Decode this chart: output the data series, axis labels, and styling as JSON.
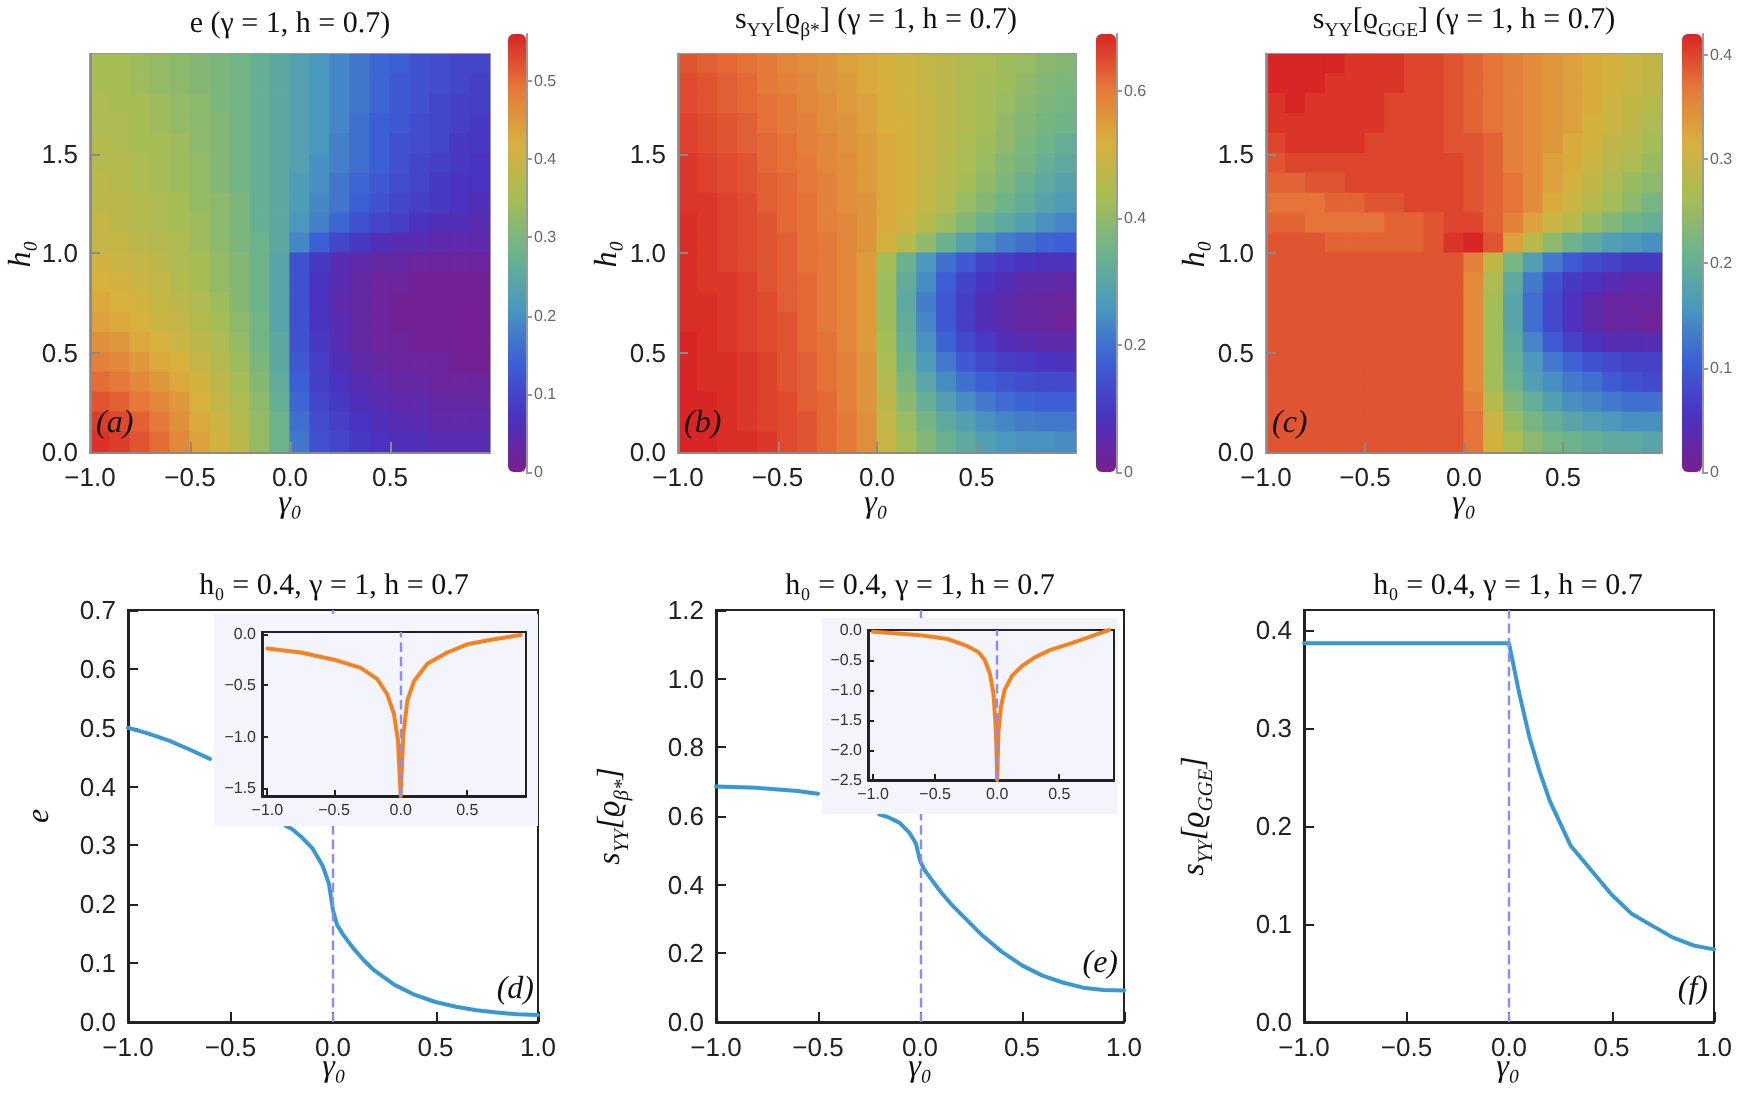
{
  "chart_data": [
    {
      "type": "heatmap",
      "title": "e  (γ = 1, h = 0.7)",
      "xlabel": "γ₀",
      "ylabel": "h₀",
      "x": [
        -0.95,
        -0.85,
        -0.75,
        -0.65,
        -0.55,
        -0.45,
        -0.35,
        -0.25,
        -0.15,
        -0.05,
        0.05,
        0.15,
        0.25,
        0.35,
        0.45,
        0.55,
        0.65,
        0.75,
        0.85,
        0.95
      ],
      "cells": [
        [
          0.35,
          0.35,
          0.34,
          0.33,
          0.32,
          0.31,
          0.3,
          0.29,
          0.27,
          0.25,
          0.23,
          0.21,
          0.19,
          0.17,
          0.15,
          0.14,
          0.12,
          0.11,
          0.1,
          0.1
        ],
        [
          0.35,
          0.35,
          0.34,
          0.33,
          0.32,
          0.31,
          0.3,
          0.29,
          0.27,
          0.25,
          0.23,
          0.21,
          0.19,
          0.17,
          0.15,
          0.13,
          0.12,
          0.11,
          0.1,
          0.09
        ],
        [
          0.36,
          0.35,
          0.35,
          0.34,
          0.33,
          0.32,
          0.3,
          0.29,
          0.27,
          0.25,
          0.23,
          0.21,
          0.19,
          0.17,
          0.15,
          0.13,
          0.12,
          0.1,
          0.09,
          0.09
        ],
        [
          0.36,
          0.36,
          0.35,
          0.34,
          0.33,
          0.32,
          0.31,
          0.29,
          0.27,
          0.25,
          0.23,
          0.21,
          0.19,
          0.16,
          0.14,
          0.13,
          0.11,
          0.1,
          0.09,
          0.08
        ],
        [
          0.37,
          0.36,
          0.35,
          0.35,
          0.34,
          0.32,
          0.31,
          0.29,
          0.27,
          0.25,
          0.23,
          0.21,
          0.18,
          0.16,
          0.14,
          0.12,
          0.11,
          0.1,
          0.08,
          0.08
        ],
        [
          0.37,
          0.37,
          0.36,
          0.35,
          0.34,
          0.33,
          0.31,
          0.29,
          0.27,
          0.25,
          0.23,
          0.2,
          0.18,
          0.16,
          0.14,
          0.12,
          0.1,
          0.09,
          0.08,
          0.07
        ],
        [
          0.38,
          0.37,
          0.36,
          0.35,
          0.34,
          0.33,
          0.31,
          0.29,
          0.27,
          0.25,
          0.22,
          0.2,
          0.17,
          0.15,
          0.13,
          0.11,
          0.1,
          0.08,
          0.07,
          0.07
        ],
        [
          0.38,
          0.38,
          0.37,
          0.36,
          0.35,
          0.33,
          0.32,
          0.3,
          0.27,
          0.25,
          0.22,
          0.19,
          0.17,
          0.14,
          0.12,
          0.1,
          0.09,
          0.08,
          0.07,
          0.06
        ],
        [
          0.39,
          0.38,
          0.37,
          0.36,
          0.35,
          0.34,
          0.32,
          0.3,
          0.27,
          0.25,
          0.21,
          0.18,
          0.15,
          0.12,
          0.1,
          0.09,
          0.07,
          0.06,
          0.06,
          0.05
        ],
        [
          0.39,
          0.39,
          0.38,
          0.37,
          0.36,
          0.34,
          0.32,
          0.3,
          0.28,
          0.25,
          0.19,
          0.14,
          0.1,
          0.08,
          0.06,
          0.05,
          0.05,
          0.04,
          0.04,
          0.04
        ],
        [
          0.41,
          0.4,
          0.39,
          0.38,
          0.36,
          0.35,
          0.33,
          0.31,
          0.28,
          0.24,
          0.12,
          0.08,
          0.05,
          0.04,
          0.03,
          0.03,
          0.02,
          0.02,
          0.02,
          0.02
        ],
        [
          0.42,
          0.41,
          0.4,
          0.39,
          0.37,
          0.35,
          0.33,
          0.31,
          0.28,
          0.24,
          0.12,
          0.07,
          0.05,
          0.03,
          0.02,
          0.02,
          0.01,
          0.01,
          0.01,
          0.01
        ],
        [
          0.43,
          0.42,
          0.41,
          0.39,
          0.38,
          0.36,
          0.34,
          0.31,
          0.28,
          0.24,
          0.12,
          0.07,
          0.04,
          0.03,
          0.02,
          0.01,
          0.01,
          0.01,
          0.01,
          0.01
        ],
        [
          0.44,
          0.43,
          0.42,
          0.4,
          0.39,
          0.37,
          0.35,
          0.32,
          0.29,
          0.24,
          0.12,
          0.07,
          0.05,
          0.03,
          0.02,
          0.01,
          0.01,
          0.01,
          0.01,
          0.01
        ],
        [
          0.46,
          0.45,
          0.43,
          0.42,
          0.4,
          0.38,
          0.36,
          0.33,
          0.29,
          0.25,
          0.12,
          0.08,
          0.05,
          0.03,
          0.02,
          0.02,
          0.01,
          0.01,
          0.01,
          0.01
        ],
        [
          0.48,
          0.47,
          0.45,
          0.43,
          0.42,
          0.39,
          0.37,
          0.34,
          0.3,
          0.25,
          0.13,
          0.09,
          0.06,
          0.04,
          0.03,
          0.02,
          0.02,
          0.02,
          0.01,
          0.01
        ],
        [
          0.5,
          0.49,
          0.47,
          0.45,
          0.43,
          0.41,
          0.38,
          0.35,
          0.31,
          0.26,
          0.14,
          0.09,
          0.07,
          0.05,
          0.04,
          0.03,
          0.03,
          0.02,
          0.02,
          0.02
        ],
        [
          0.52,
          0.51,
          0.49,
          0.47,
          0.45,
          0.42,
          0.39,
          0.36,
          0.32,
          0.27,
          0.15,
          0.1,
          0.08,
          0.06,
          0.05,
          0.04,
          0.04,
          0.03,
          0.03,
          0.03
        ],
        [
          0.54,
          0.53,
          0.51,
          0.49,
          0.46,
          0.43,
          0.4,
          0.37,
          0.33,
          0.28,
          0.16,
          0.11,
          0.09,
          0.07,
          0.06,
          0.05,
          0.05,
          0.04,
          0.04,
          0.04
        ],
        [
          0.55,
          0.54,
          0.52,
          0.5,
          0.47,
          0.44,
          0.41,
          0.38,
          0.33,
          0.28,
          0.17,
          0.12,
          0.1,
          0.08,
          0.07,
          0.06,
          0.06,
          0.05,
          0.05,
          0.05
        ]
      ],
      "xlim": [
        -1,
        1
      ],
      "ylim": [
        0,
        2
      ],
      "xticks": [
        {
          "value": -1,
          "label": "−1.0"
        },
        {
          "value": -0.5,
          "label": "−0.5"
        },
        {
          "value": 0,
          "label": "0.0"
        },
        {
          "value": 0.5,
          "label": "0.5"
        }
      ],
      "yticks": [
        {
          "value": 0,
          "label": "0.0"
        },
        0.5,
        {
          "value": 1,
          "label": "1.0"
        },
        1.5
      ],
      "clim": [
        0,
        0.56
      ],
      "cticks": [
        0,
        0.1,
        0.2,
        0.3,
        0.4,
        0.5
      ],
      "annotations": [
        "(a)"
      ]
    },
    {
      "type": "heatmap",
      "title": "s$_{YY}$[ϱ$_{β*}$]  (γ = 1, h = 0.7)",
      "xlabel": "γ₀",
      "ylabel": "h₀",
      "x": [
        -0.95,
        -0.85,
        -0.75,
        -0.65,
        -0.55,
        -0.45,
        -0.35,
        -0.25,
        -0.15,
        -0.05,
        0.05,
        0.15,
        0.25,
        0.35,
        0.45,
        0.55,
        0.65,
        0.75,
        0.85,
        0.95
      ],
      "cells": [
        [
          0.64,
          0.63,
          0.62,
          0.61,
          0.6,
          0.58,
          0.57,
          0.56,
          0.54,
          0.53,
          0.51,
          0.5,
          0.48,
          0.47,
          0.45,
          0.44,
          0.42,
          0.41,
          0.39,
          0.38
        ],
        [
          0.65,
          0.64,
          0.63,
          0.62,
          0.6,
          0.59,
          0.58,
          0.56,
          0.55,
          0.53,
          0.52,
          0.5,
          0.48,
          0.47,
          0.45,
          0.43,
          0.42,
          0.4,
          0.38,
          0.37
        ],
        [
          0.65,
          0.64,
          0.63,
          0.62,
          0.61,
          0.6,
          0.58,
          0.57,
          0.55,
          0.54,
          0.52,
          0.5,
          0.49,
          0.47,
          0.45,
          0.43,
          0.41,
          0.39,
          0.37,
          0.36
        ],
        [
          0.66,
          0.65,
          0.64,
          0.63,
          0.61,
          0.6,
          0.59,
          0.57,
          0.56,
          0.54,
          0.52,
          0.51,
          0.49,
          0.47,
          0.45,
          0.43,
          0.4,
          0.38,
          0.36,
          0.35
        ],
        [
          0.66,
          0.65,
          0.64,
          0.63,
          0.62,
          0.61,
          0.59,
          0.58,
          0.56,
          0.55,
          0.53,
          0.51,
          0.49,
          0.47,
          0.44,
          0.42,
          0.4,
          0.37,
          0.35,
          0.33
        ],
        [
          0.67,
          0.66,
          0.65,
          0.64,
          0.62,
          0.61,
          0.6,
          0.58,
          0.57,
          0.55,
          0.53,
          0.51,
          0.49,
          0.46,
          0.44,
          0.41,
          0.38,
          0.36,
          0.33,
          0.31
        ],
        [
          0.67,
          0.66,
          0.65,
          0.64,
          0.63,
          0.62,
          0.6,
          0.59,
          0.57,
          0.55,
          0.53,
          0.51,
          0.48,
          0.46,
          0.43,
          0.4,
          0.37,
          0.34,
          0.31,
          0.29
        ],
        [
          0.67,
          0.67,
          0.66,
          0.65,
          0.63,
          0.62,
          0.61,
          0.59,
          0.57,
          0.56,
          0.53,
          0.51,
          0.48,
          0.45,
          0.41,
          0.38,
          0.35,
          0.32,
          0.29,
          0.27
        ],
        [
          0.68,
          0.67,
          0.66,
          0.65,
          0.64,
          0.62,
          0.61,
          0.59,
          0.58,
          0.56,
          0.53,
          0.5,
          0.46,
          0.42,
          0.38,
          0.34,
          0.31,
          0.28,
          0.25,
          0.23
        ],
        [
          0.68,
          0.67,
          0.66,
          0.65,
          0.64,
          0.63,
          0.61,
          0.6,
          0.58,
          0.56,
          0.51,
          0.46,
          0.4,
          0.34,
          0.29,
          0.25,
          0.22,
          0.2,
          0.18,
          0.17
        ],
        [
          0.68,
          0.67,
          0.66,
          0.65,
          0.64,
          0.63,
          0.61,
          0.6,
          0.58,
          0.55,
          0.43,
          0.34,
          0.26,
          0.2,
          0.16,
          0.12,
          0.1,
          0.09,
          0.08,
          0.08
        ],
        [
          0.68,
          0.67,
          0.67,
          0.66,
          0.64,
          0.63,
          0.62,
          0.6,
          0.58,
          0.55,
          0.42,
          0.32,
          0.24,
          0.17,
          0.12,
          0.09,
          0.07,
          0.05,
          0.05,
          0.04
        ],
        [
          0.68,
          0.68,
          0.67,
          0.66,
          0.65,
          0.63,
          0.62,
          0.6,
          0.58,
          0.55,
          0.42,
          0.31,
          0.22,
          0.16,
          0.11,
          0.07,
          0.05,
          0.04,
          0.03,
          0.03
        ],
        [
          0.68,
          0.68,
          0.67,
          0.66,
          0.65,
          0.64,
          0.62,
          0.6,
          0.58,
          0.55,
          0.42,
          0.32,
          0.23,
          0.16,
          0.11,
          0.07,
          0.05,
          0.04,
          0.03,
          0.02
        ],
        [
          0.69,
          0.68,
          0.67,
          0.66,
          0.65,
          0.64,
          0.62,
          0.61,
          0.58,
          0.55,
          0.43,
          0.33,
          0.25,
          0.18,
          0.13,
          0.1,
          0.07,
          0.06,
          0.05,
          0.05
        ],
        [
          0.69,
          0.68,
          0.68,
          0.67,
          0.66,
          0.64,
          0.63,
          0.61,
          0.59,
          0.56,
          0.44,
          0.35,
          0.27,
          0.21,
          0.16,
          0.13,
          0.11,
          0.1,
          0.09,
          0.08
        ],
        [
          0.69,
          0.68,
          0.68,
          0.67,
          0.66,
          0.64,
          0.63,
          0.61,
          0.59,
          0.56,
          0.45,
          0.37,
          0.3,
          0.24,
          0.2,
          0.17,
          0.15,
          0.14,
          0.13,
          0.13
        ],
        [
          0.69,
          0.69,
          0.68,
          0.67,
          0.66,
          0.65,
          0.63,
          0.62,
          0.59,
          0.56,
          0.47,
          0.39,
          0.33,
          0.28,
          0.24,
          0.21,
          0.19,
          0.18,
          0.17,
          0.17
        ],
        [
          0.69,
          0.69,
          0.68,
          0.67,
          0.66,
          0.65,
          0.64,
          0.62,
          0.6,
          0.57,
          0.48,
          0.41,
          0.36,
          0.31,
          0.28,
          0.25,
          0.23,
          0.22,
          0.21,
          0.21
        ],
        [
          0.69,
          0.69,
          0.68,
          0.68,
          0.67,
          0.65,
          0.64,
          0.62,
          0.6,
          0.57,
          0.49,
          0.43,
          0.38,
          0.34,
          0.31,
          0.28,
          0.26,
          0.25,
          0.25,
          0.24
        ]
      ],
      "xlim": [
        -1,
        1
      ],
      "ylim": [
        0,
        2
      ],
      "xticks": [
        {
          "value": -1,
          "label": "−1.0"
        },
        {
          "value": -0.5,
          "label": "−0.5"
        },
        {
          "value": 0,
          "label": "0.0"
        },
        {
          "value": 0.5,
          "label": "0.5"
        }
      ],
      "yticks": [
        {
          "value": 0,
          "label": "0.0"
        },
        0.5,
        {
          "value": 1,
          "label": "1.0"
        },
        1.5
      ],
      "clim": [
        0,
        0.69
      ],
      "cticks": [
        0,
        0.2,
        0.4,
        0.6
      ],
      "annotations": [
        "(b)"
      ]
    },
    {
      "type": "heatmap",
      "title": "s$_{YY}$[ϱ$_{GGE}$]  (γ = 1, h = 0.7)",
      "xlabel": "γ₀",
      "ylabel": "h₀",
      "x": [
        -0.95,
        -0.85,
        -0.75,
        -0.65,
        -0.55,
        -0.45,
        -0.35,
        -0.25,
        -0.15,
        -0.05,
        0.05,
        0.15,
        0.25,
        0.35,
        0.45,
        0.55,
        0.65,
        0.75,
        0.85,
        0.95
      ],
      "cells": [
        [
          0.42,
          0.42,
          0.42,
          0.42,
          0.41,
          0.41,
          0.41,
          0.4,
          0.4,
          0.39,
          0.38,
          0.37,
          0.36,
          0.35,
          0.34,
          0.33,
          0.32,
          0.31,
          0.3,
          0.29
        ],
        [
          0.42,
          0.42,
          0.42,
          0.41,
          0.41,
          0.41,
          0.41,
          0.4,
          0.4,
          0.39,
          0.38,
          0.37,
          0.36,
          0.35,
          0.34,
          0.33,
          0.32,
          0.31,
          0.3,
          0.29
        ],
        [
          0.41,
          0.42,
          0.41,
          0.41,
          0.41,
          0.41,
          0.4,
          0.4,
          0.4,
          0.39,
          0.38,
          0.37,
          0.36,
          0.35,
          0.34,
          0.33,
          0.32,
          0.3,
          0.29,
          0.28
        ],
        [
          0.41,
          0.41,
          0.41,
          0.41,
          0.41,
          0.41,
          0.4,
          0.4,
          0.4,
          0.39,
          0.38,
          0.37,
          0.36,
          0.35,
          0.34,
          0.33,
          0.31,
          0.3,
          0.29,
          0.27
        ],
        [
          0.4,
          0.41,
          0.41,
          0.41,
          0.41,
          0.4,
          0.4,
          0.4,
          0.4,
          0.39,
          0.39,
          0.38,
          0.36,
          0.35,
          0.34,
          0.32,
          0.31,
          0.29,
          0.28,
          0.26
        ],
        [
          0.39,
          0.4,
          0.4,
          0.4,
          0.4,
          0.4,
          0.4,
          0.4,
          0.4,
          0.4,
          0.39,
          0.38,
          0.36,
          0.35,
          0.33,
          0.32,
          0.3,
          0.28,
          0.27,
          0.25
        ],
        [
          0.38,
          0.38,
          0.39,
          0.39,
          0.4,
          0.4,
          0.4,
          0.4,
          0.4,
          0.4,
          0.39,
          0.38,
          0.37,
          0.35,
          0.33,
          0.31,
          0.29,
          0.27,
          0.25,
          0.24
        ],
        [
          0.37,
          0.37,
          0.37,
          0.38,
          0.38,
          0.39,
          0.39,
          0.4,
          0.4,
          0.4,
          0.39,
          0.38,
          0.37,
          0.35,
          0.32,
          0.3,
          0.28,
          0.26,
          0.24,
          0.22
        ],
        [
          0.38,
          0.38,
          0.37,
          0.37,
          0.37,
          0.37,
          0.38,
          0.38,
          0.39,
          0.4,
          0.4,
          0.38,
          0.36,
          0.33,
          0.3,
          0.28,
          0.25,
          0.23,
          0.21,
          0.2
        ],
        [
          0.39,
          0.39,
          0.39,
          0.38,
          0.38,
          0.38,
          0.38,
          0.38,
          0.39,
          0.41,
          0.42,
          0.39,
          0.33,
          0.28,
          0.24,
          0.21,
          0.19,
          0.17,
          0.16,
          0.15
        ],
        [
          0.39,
          0.39,
          0.39,
          0.39,
          0.39,
          0.39,
          0.39,
          0.39,
          0.39,
          0.39,
          0.36,
          0.29,
          0.22,
          0.17,
          0.13,
          0.1,
          0.08,
          0.07,
          0.06,
          0.06
        ],
        [
          0.39,
          0.39,
          0.39,
          0.39,
          0.39,
          0.39,
          0.39,
          0.39,
          0.39,
          0.39,
          0.35,
          0.27,
          0.19,
          0.13,
          0.09,
          0.06,
          0.05,
          0.04,
          0.03,
          0.03
        ],
        [
          0.39,
          0.39,
          0.39,
          0.39,
          0.39,
          0.39,
          0.39,
          0.39,
          0.39,
          0.39,
          0.35,
          0.26,
          0.18,
          0.12,
          0.08,
          0.05,
          0.03,
          0.02,
          0.02,
          0.02
        ],
        [
          0.39,
          0.39,
          0.39,
          0.39,
          0.39,
          0.39,
          0.39,
          0.39,
          0.39,
          0.39,
          0.35,
          0.26,
          0.18,
          0.12,
          0.08,
          0.05,
          0.03,
          0.02,
          0.02,
          0.01
        ],
        [
          0.39,
          0.39,
          0.39,
          0.39,
          0.39,
          0.39,
          0.39,
          0.39,
          0.39,
          0.39,
          0.35,
          0.26,
          0.19,
          0.14,
          0.1,
          0.07,
          0.05,
          0.04,
          0.04,
          0.04
        ],
        [
          0.39,
          0.39,
          0.39,
          0.39,
          0.39,
          0.39,
          0.39,
          0.39,
          0.39,
          0.39,
          0.35,
          0.26,
          0.2,
          0.16,
          0.13,
          0.11,
          0.09,
          0.08,
          0.07,
          0.07
        ],
        [
          0.39,
          0.39,
          0.39,
          0.39,
          0.39,
          0.39,
          0.39,
          0.39,
          0.39,
          0.39,
          0.35,
          0.26,
          0.21,
          0.17,
          0.15,
          0.13,
          0.12,
          0.1,
          0.09,
          0.08
        ],
        [
          0.39,
          0.39,
          0.39,
          0.39,
          0.39,
          0.39,
          0.39,
          0.39,
          0.39,
          0.39,
          0.36,
          0.28,
          0.23,
          0.2,
          0.17,
          0.15,
          0.14,
          0.13,
          0.12,
          0.12
        ],
        [
          0.39,
          0.39,
          0.39,
          0.39,
          0.39,
          0.39,
          0.39,
          0.39,
          0.39,
          0.39,
          0.37,
          0.3,
          0.25,
          0.22,
          0.2,
          0.18,
          0.17,
          0.16,
          0.15,
          0.15
        ],
        [
          0.39,
          0.39,
          0.39,
          0.39,
          0.39,
          0.39,
          0.39,
          0.39,
          0.39,
          0.39,
          0.37,
          0.31,
          0.27,
          0.24,
          0.22,
          0.21,
          0.2,
          0.19,
          0.19,
          0.18
        ]
      ],
      "xlim": [
        -1,
        1
      ],
      "ylim": [
        0,
        2
      ],
      "xticks": [
        {
          "value": -1,
          "label": "−1.0"
        },
        {
          "value": -0.5,
          "label": "−0.5"
        },
        {
          "value": 0,
          "label": "0.0"
        },
        {
          "value": 0.5,
          "label": "0.5"
        }
      ],
      "yticks": [
        {
          "value": 0,
          "label": "0.0"
        },
        0.5,
        {
          "value": 1,
          "label": "1.0"
        },
        1.5
      ],
      "clim": [
        0,
        0.42
      ],
      "cticks": [
        0,
        0.1,
        0.2,
        0.3,
        0.4
      ],
      "annotations": [
        "(c)"
      ]
    },
    {
      "type": "line",
      "title": "h₀ = 0.4, γ = 1, h = 0.7",
      "xlabel": "γ₀",
      "ylabel": "e",
      "x": [
        -1,
        -0.9,
        -0.8,
        -0.7,
        -0.6,
        -0.45,
        -0.35,
        -0.23,
        -0.2,
        -0.15,
        -0.1,
        -0.05,
        -0.02,
        0,
        0.02,
        0.05,
        0.1,
        0.15,
        0.2,
        0.3,
        0.4,
        0.5,
        0.6,
        0.7,
        0.8,
        0.9,
        1
      ],
      "values": [
        0.5,
        0.49,
        0.478,
        0.463,
        0.447,
        null,
        null,
        0.333,
        0.328,
        0.313,
        0.295,
        0.265,
        0.235,
        0.19,
        0.165,
        0.148,
        0.125,
        0.105,
        0.088,
        0.063,
        0.046,
        0.034,
        0.026,
        0.02,
        0.016,
        0.013,
        0.012
      ],
      "color": "#3a98d0",
      "xlim": [
        -1,
        1
      ],
      "ylim": [
        0,
        0.7
      ],
      "xticks": [
        {
          "value": -1,
          "label": "−1.0"
        },
        {
          "value": -0.5,
          "label": "−0.5"
        },
        {
          "value": 0,
          "label": "0.0"
        },
        {
          "value": 0.5,
          "label": "0.5"
        },
        {
          "value": 1,
          "label": "1.0"
        }
      ],
      "yticks": [
        {
          "value": 0,
          "label": "0.0"
        },
        0.1,
        0.2,
        0.3,
        0.4,
        0.5,
        0.6,
        0.7
      ],
      "ref_lines": [
        {
          "axis": "x",
          "value": 0,
          "color": "#8c8cf5",
          "line_style": "dashed"
        }
      ],
      "annotations": [
        "(d)"
      ]
    },
    {
      "type": "line",
      "x": [
        -1,
        -0.75,
        -0.5,
        -0.3,
        -0.175,
        -0.1,
        -0.05,
        -0.02,
        0,
        0.02,
        0.05,
        0.1,
        0.2,
        0.35,
        0.5,
        0.7,
        0.9
      ],
      "values": [
        -0.14,
        -0.18,
        -0.25,
        -0.33,
        -0.44,
        -0.59,
        -0.78,
        -1.04,
        -1.58,
        -0.98,
        -0.65,
        -0.46,
        -0.29,
        -0.18,
        -0.1,
        -0.05,
        -0.01
      ],
      "color": "#f58220",
      "xlim": [
        -1.04,
        0.94
      ],
      "ylim": [
        -1.58,
        0.02
      ],
      "xticks": [
        {
          "value": -1,
          "label": "−1.0"
        },
        {
          "value": -0.5,
          "label": "−0.5"
        },
        {
          "value": 0,
          "label": "0.0"
        },
        {
          "value": 0.5,
          "label": "0.5"
        }
      ],
      "yticks": [
        {
          "value": -1.5,
          "label": "−1.5"
        },
        {
          "value": -1,
          "label": "−1.0"
        },
        {
          "value": -0.5,
          "label": "−0.5"
        },
        {
          "value": 0,
          "label": "0.0"
        }
      ],
      "ref_lines": [
        {
          "axis": "x",
          "value": 0,
          "color": "#8c8cf5",
          "line_style": "dashed"
        }
      ]
    },
    {
      "type": "line",
      "title": "h₀ = 0.4, γ = 1, h = 0.7",
      "xlabel": "γ₀",
      "ylabel": "s$_{YY}$[ϱ$_{β*}$]",
      "x": [
        -1,
        -0.8,
        -0.6,
        -0.5,
        -0.4,
        -0.3,
        -0.2,
        -0.15,
        -0.1,
        -0.05,
        -0.02,
        0,
        0.02,
        0.05,
        0.1,
        0.15,
        0.2,
        0.3,
        0.4,
        0.5,
        0.6,
        0.7,
        0.8,
        0.9,
        1
      ],
      "values": [
        0.686,
        0.682,
        0.673,
        0.665,
        null,
        null,
        0.605,
        0.595,
        0.58,
        0.55,
        0.52,
        0.47,
        0.445,
        0.42,
        0.38,
        0.345,
        0.315,
        0.255,
        0.205,
        0.165,
        0.135,
        0.115,
        0.1,
        0.093,
        0.092
      ],
      "color": "#3a98d0",
      "xlim": [
        -1,
        1
      ],
      "ylim": [
        0,
        1.2
      ],
      "xticks": [
        {
          "value": -1,
          "label": "−1.0"
        },
        {
          "value": -0.5,
          "label": "−0.5"
        },
        {
          "value": 0,
          "label": "0.0"
        },
        {
          "value": 0.5,
          "label": "0.5"
        },
        {
          "value": 1,
          "label": "1.0"
        }
      ],
      "yticks": [
        {
          "value": 0,
          "label": "0.0"
        },
        0.2,
        0.4,
        0.6,
        0.8,
        {
          "value": 1,
          "label": "1.0"
        },
        1.2
      ],
      "ref_lines": [
        {
          "axis": "x",
          "value": 0,
          "color": "#8c8cf5",
          "line_style": "dashed"
        }
      ],
      "annotations": [
        "(e)"
      ]
    },
    {
      "type": "line",
      "x": [
        -1,
        -0.8,
        -0.6,
        -0.4,
        -0.25,
        -0.15,
        -0.1,
        -0.06,
        -0.03,
        -0.01,
        0,
        0.01,
        0.03,
        0.06,
        0.12,
        0.2,
        0.3,
        0.43,
        0.6,
        0.75,
        0.9
      ],
      "values": [
        -0.03,
        -0.06,
        -0.09,
        -0.15,
        -0.26,
        -0.37,
        -0.5,
        -0.72,
        -1.06,
        -1.7,
        -2.5,
        -1.7,
        -1.28,
        -1.0,
        -0.76,
        -0.6,
        -0.46,
        -0.33,
        -0.22,
        -0.11,
        0
      ],
      "color": "#f58220",
      "xlim": [
        -1.04,
        0.94
      ],
      "ylim": [
        -2.5,
        0
      ],
      "xticks": [
        {
          "value": -1,
          "label": "−1.0"
        },
        {
          "value": -0.5,
          "label": "−0.5"
        },
        {
          "value": 0,
          "label": "0.0"
        },
        {
          "value": 0.5,
          "label": "0.5"
        }
      ],
      "yticks": [
        {
          "value": -2.5,
          "label": "−2.5"
        },
        {
          "value": -2,
          "label": "−2.0"
        },
        {
          "value": -1.5,
          "label": "−1.5"
        },
        {
          "value": -1,
          "label": "−1.0"
        },
        {
          "value": -0.5,
          "label": "−0.5"
        },
        {
          "value": 0,
          "label": "0.0"
        }
      ],
      "ref_lines": [
        {
          "axis": "x",
          "value": 0,
          "color": "#8c8cf5",
          "line_style": "dashed"
        }
      ]
    },
    {
      "type": "line",
      "title": "h₀ = 0.4, γ = 1, h = 0.7",
      "xlabel": "γ₀",
      "ylabel": "s$_{YY}$[ϱ$_{GGE}$]",
      "x": [
        -1,
        0,
        0.05,
        0.1,
        0.15,
        0.2,
        0.3,
        0.4,
        0.5,
        0.6,
        0.7,
        0.8,
        0.9,
        1
      ],
      "values": [
        0.386,
        0.386,
        0.335,
        0.29,
        0.255,
        0.225,
        0.18,
        0.155,
        0.13,
        0.11,
        0.098,
        0.086,
        0.078,
        0.074
      ],
      "color": "#3a98d0",
      "xlim": [
        -1,
        1
      ],
      "ylim": [
        0,
        0.42
      ],
      "xticks": [
        {
          "value": -1,
          "label": "−1.0"
        },
        {
          "value": -0.5,
          "label": "−0.5"
        },
        {
          "value": 0,
          "label": "0.0"
        },
        {
          "value": 0.5,
          "label": "0.5"
        },
        {
          "value": 1,
          "label": "1.0"
        }
      ],
      "yticks": [
        {
          "value": 0,
          "label": "0.0"
        },
        0.1,
        0.2,
        0.3,
        0.4
      ],
      "ref_lines": [
        {
          "axis": "x",
          "value": 0,
          "color": "#8c8cf5",
          "line_style": "dashed"
        }
      ],
      "annotations": [
        "(f)"
      ]
    }
  ]
}
